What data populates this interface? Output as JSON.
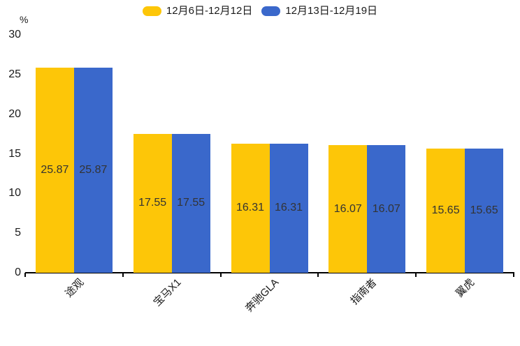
{
  "chart_data": {
    "type": "bar",
    "categories": [
      "途观",
      "宝马X1",
      "奔驰GLA",
      "指南者",
      "翼虎"
    ],
    "series": [
      {
        "name": "12月6日-12月12日",
        "color": "#FDC608",
        "values": [
          25.87,
          17.55,
          16.31,
          16.07,
          15.65
        ]
      },
      {
        "name": "12月13日-12月19日",
        "color": "#3A68CB",
        "values": [
          25.87,
          17.55,
          16.31,
          16.07,
          15.65
        ]
      }
    ],
    "ylabel": "%",
    "ylim": [
      0,
      30
    ],
    "yticks": [
      0,
      5,
      10,
      15,
      20,
      25,
      30
    ],
    "grid": false,
    "legend_position": "top-center",
    "value_labels_position": "inside-center",
    "axis_line_color": "#000000",
    "value_label_color": "#333333"
  }
}
